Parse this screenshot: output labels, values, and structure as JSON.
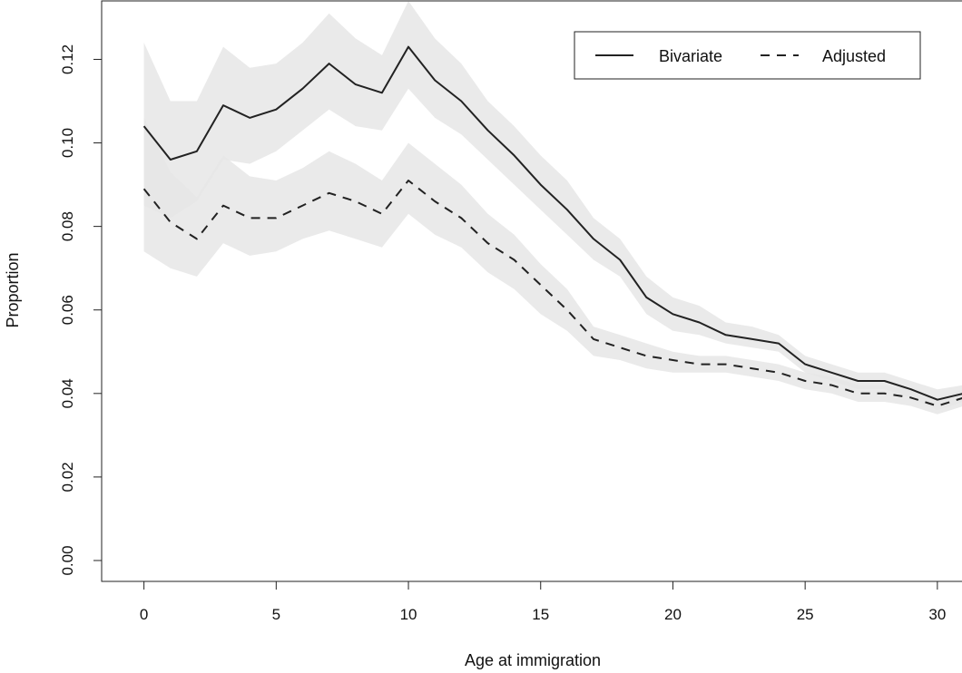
{
  "chart_data": {
    "type": "line",
    "xlabel": "Age at immigration",
    "ylabel": "Proportion",
    "xlim": [
      -1.6,
      31
    ],
    "ylim": [
      -0.005,
      0.134
    ],
    "xticks": [
      "0",
      "5",
      "10",
      "15",
      "20",
      "25",
      "30"
    ],
    "yticks": [
      "0.00",
      "0.02",
      "0.04",
      "0.06",
      "0.08",
      "0.10",
      "0.12"
    ],
    "grid": false,
    "legend_position": "top-right",
    "x": [
      0,
      1,
      2,
      3,
      4,
      5,
      6,
      7,
      8,
      9,
      10,
      11,
      12,
      13,
      14,
      15,
      16,
      17,
      18,
      19,
      20,
      21,
      22,
      23,
      24,
      25,
      26,
      27,
      28,
      29,
      30,
      31
    ],
    "series": [
      {
        "name": "Bivariate",
        "line_style": "solid",
        "color": "#222222",
        "band_color": "#e6e6e6",
        "values": [
          0.104,
          0.096,
          0.098,
          0.109,
          0.106,
          0.108,
          0.113,
          0.119,
          0.114,
          0.112,
          0.123,
          0.115,
          0.11,
          0.103,
          0.097,
          0.09,
          0.084,
          0.077,
          0.072,
          0.063,
          0.059,
          0.057,
          0.054,
          0.053,
          0.052,
          0.047,
          0.045,
          0.043,
          0.043,
          0.041,
          0.0385,
          0.04
        ],
        "lower": [
          0.085,
          0.082,
          0.086,
          0.096,
          0.095,
          0.098,
          0.103,
          0.108,
          0.104,
          0.103,
          0.113,
          0.106,
          0.102,
          0.096,
          0.09,
          0.084,
          0.078,
          0.072,
          0.068,
          0.059,
          0.055,
          0.054,
          0.052,
          0.051,
          0.05,
          0.045,
          0.043,
          0.041,
          0.041,
          0.039,
          0.036,
          0.038
        ],
        "upper": [
          0.124,
          0.11,
          0.11,
          0.123,
          0.118,
          0.119,
          0.124,
          0.131,
          0.125,
          0.121,
          0.134,
          0.125,
          0.119,
          0.11,
          0.104,
          0.097,
          0.091,
          0.082,
          0.077,
          0.068,
          0.063,
          0.061,
          0.057,
          0.056,
          0.054,
          0.049,
          0.047,
          0.045,
          0.045,
          0.043,
          0.041,
          0.042
        ]
      },
      {
        "name": "Adjusted",
        "line_style": "dashed",
        "color": "#222222",
        "band_color": "#e6e6e6",
        "values": [
          0.089,
          0.081,
          0.077,
          0.085,
          0.082,
          0.082,
          0.085,
          0.088,
          0.086,
          0.083,
          0.091,
          0.086,
          0.082,
          0.076,
          0.072,
          0.066,
          0.06,
          0.053,
          0.051,
          0.049,
          0.048,
          0.047,
          0.047,
          0.046,
          0.045,
          0.043,
          0.042,
          0.04,
          0.04,
          0.039,
          0.037,
          0.039
        ],
        "lower": [
          0.074,
          0.07,
          0.068,
          0.076,
          0.073,
          0.074,
          0.077,
          0.079,
          0.077,
          0.075,
          0.083,
          0.078,
          0.075,
          0.069,
          0.065,
          0.059,
          0.055,
          0.049,
          0.048,
          0.046,
          0.045,
          0.045,
          0.045,
          0.044,
          0.043,
          0.041,
          0.04,
          0.038,
          0.038,
          0.037,
          0.035,
          0.037
        ],
        "upper": [
          0.106,
          0.093,
          0.087,
          0.097,
          0.092,
          0.091,
          0.094,
          0.098,
          0.095,
          0.091,
          0.1,
          0.095,
          0.09,
          0.083,
          0.078,
          0.071,
          0.065,
          0.056,
          0.054,
          0.052,
          0.05,
          0.049,
          0.049,
          0.048,
          0.047,
          0.045,
          0.044,
          0.042,
          0.042,
          0.041,
          0.039,
          0.041
        ]
      }
    ]
  }
}
